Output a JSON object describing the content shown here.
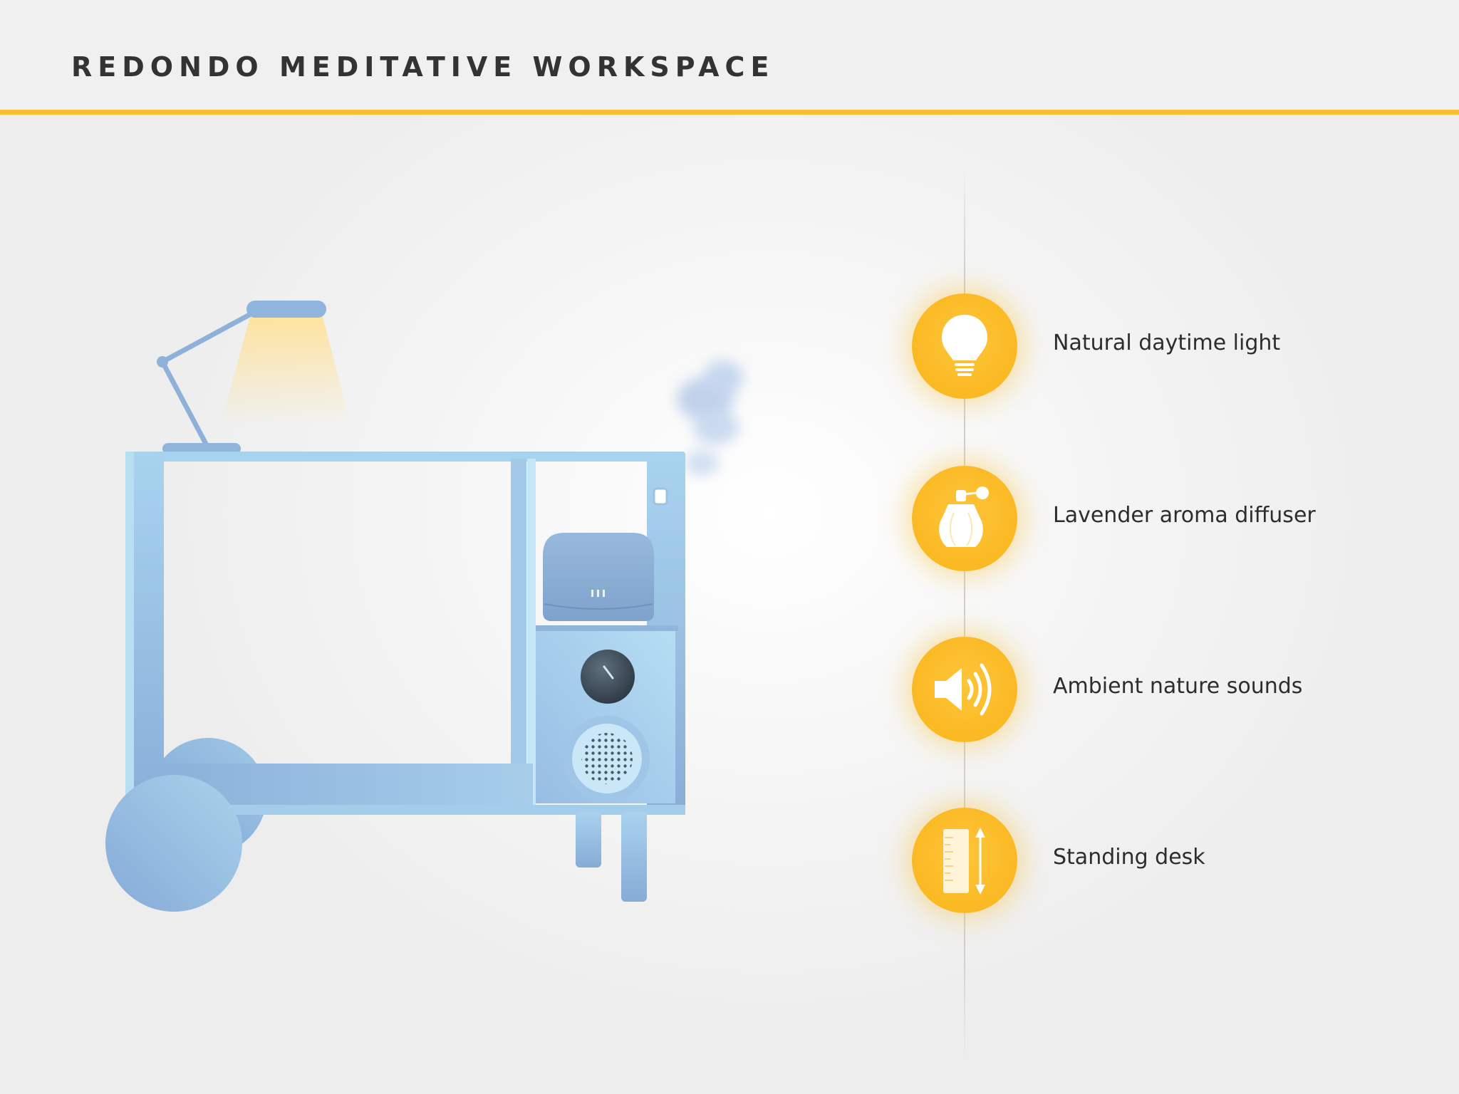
{
  "header": {
    "title": "REDONDO MEDITATIVE WORKSPACE"
  },
  "colors": {
    "accent": "#fbbe2e",
    "desk_light": "#b4ddf2",
    "desk_dark": "#8fb5db",
    "title_text": "#333333"
  },
  "features": [
    {
      "label": "Natural daytime light",
      "icon": "light-bulb-icon"
    },
    {
      "label": "Lavender aroma diffuser",
      "icon": "perfume-bottle-icon"
    },
    {
      "label": "Ambient nature sounds",
      "icon": "speaker-icon"
    },
    {
      "label": "Standing desk",
      "icon": "height-ruler-icon"
    }
  ]
}
